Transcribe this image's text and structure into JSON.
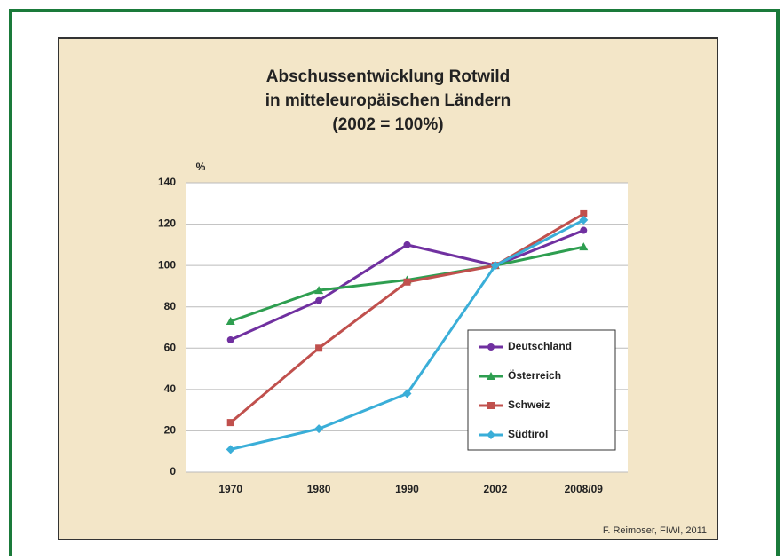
{
  "chart_data": {
    "type": "line",
    "title": [
      "Abschussentwicklung Rotwild",
      "in mitteleuropäischen Ländern",
      "(2002 = 100%)"
    ],
    "y_label": "%",
    "source": "F. Reimoser, FIWI, 2011",
    "categories": [
      "1970",
      "1980",
      "1990",
      "2002",
      "2008/09"
    ],
    "series": [
      {
        "name": "Deutschland",
        "color": "#7030a0",
        "marker": "circle",
        "values": [
          64,
          83,
          110,
          100,
          117
        ]
      },
      {
        "name": "Österreich",
        "color": "#2e9e50",
        "marker": "triangle",
        "values": [
          73,
          88,
          93,
          100,
          109
        ]
      },
      {
        "name": "Schweiz",
        "color": "#c0504d",
        "marker": "square",
        "values": [
          24,
          60,
          92,
          100,
          125
        ]
      },
      {
        "name": "Südtirol",
        "color": "#3aaed8",
        "marker": "diamond",
        "values": [
          11,
          21,
          38,
          100,
          122
        ]
      }
    ],
    "ylim": [
      0,
      140
    ],
    "yticks": [
      0,
      20,
      40,
      60,
      80,
      100,
      120,
      140
    ],
    "grid": true,
    "legend": "lower right"
  }
}
